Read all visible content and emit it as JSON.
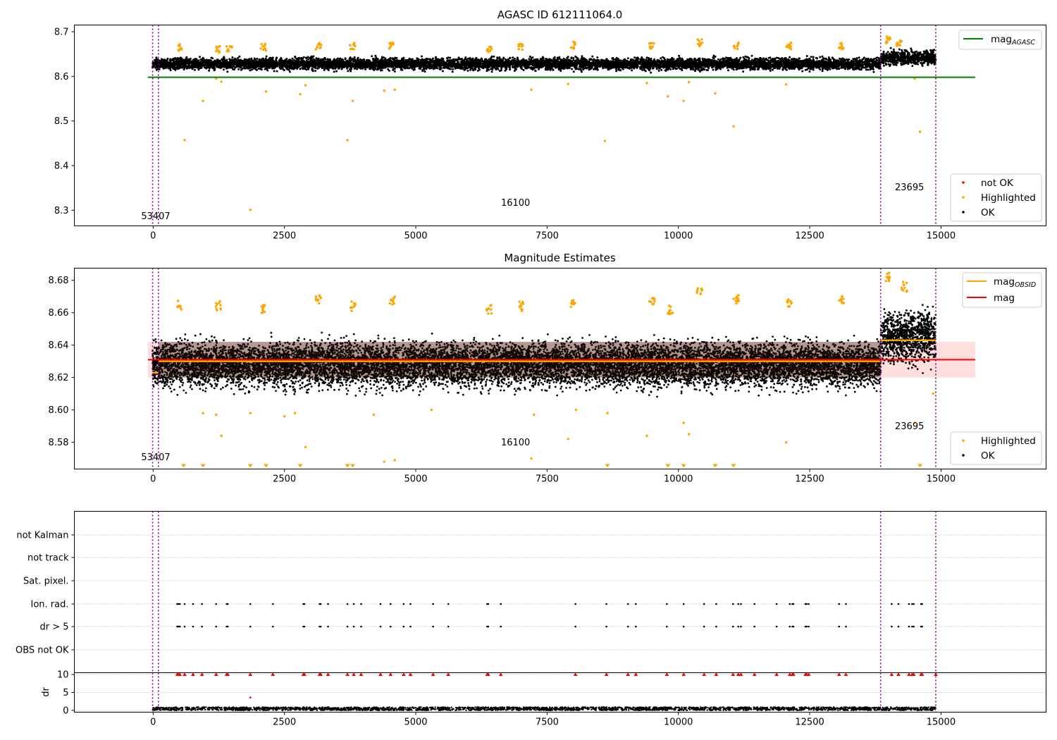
{
  "chart_data": [
    {
      "type": "scatter",
      "title": "AGASC ID 612111064.0",
      "xlim": [
        -1500,
        17000
      ],
      "ylim": [
        8.265,
        8.715
      ],
      "x_ticks": [
        0,
        2500,
        5000,
        7500,
        10000,
        12500,
        15000
      ],
      "y_ticks": [
        8.3,
        8.4,
        8.5,
        8.6,
        8.7
      ],
      "x_tick_labels": [
        "0",
        "2500",
        "5000",
        "7500",
        "10000",
        "12500",
        "15000"
      ],
      "y_tick_labels": [
        "8.3",
        "8.4",
        "8.5",
        "8.6",
        "8.7"
      ],
      "vlines": [
        -10,
        100,
        13850,
        14900
      ],
      "obsid_annotations": [
        {
          "x": 50,
          "y": 8.28,
          "label": "53407"
        },
        {
          "x": 6900,
          "y": 8.31,
          "label": "16100"
        },
        {
          "x": 14400,
          "y": 8.345,
          "label": "23695"
        }
      ],
      "hlines": [
        {
          "name": "mag_AGASC",
          "value": 8.598,
          "color": "#008000",
          "x_range": [
            -100,
            15650
          ]
        }
      ],
      "ok_band": {
        "x_segments": [
          [
            -10,
            13850,
            8.602,
            8.652,
            8.628
          ],
          [
            13850,
            14900,
            8.612,
            8.672,
            8.642
          ]
        ]
      },
      "highlighted_points": [
        [
          600,
          8.457
        ],
        [
          950,
          8.545
        ],
        [
          1200,
          8.595
        ],
        [
          1300,
          8.588
        ],
        [
          1850,
          8.301
        ],
        [
          2150,
          8.566
        ],
        [
          2800,
          8.56
        ],
        [
          2900,
          8.58
        ],
        [
          3700,
          8.457
        ],
        [
          3800,
          8.545
        ],
        [
          4400,
          8.568
        ],
        [
          4600,
          8.57
        ],
        [
          7200,
          8.57
        ],
        [
          7900,
          8.583
        ],
        [
          8600,
          8.455
        ],
        [
          9400,
          8.585
        ],
        [
          9800,
          8.555
        ],
        [
          10100,
          8.545
        ],
        [
          10200,
          8.587
        ],
        [
          10700,
          8.562
        ],
        [
          11050,
          8.488
        ],
        [
          12050,
          8.582
        ],
        [
          14600,
          8.476
        ],
        [
          14500,
          8.595
        ]
      ],
      "highlighted_clusters": [
        [
          500,
          8.665
        ],
        [
          1250,
          8.66
        ],
        [
          1450,
          8.66
        ],
        [
          2100,
          8.665
        ],
        [
          3150,
          8.668
        ],
        [
          3800,
          8.668
        ],
        [
          4550,
          8.668
        ],
        [
          6400,
          8.66
        ],
        [
          7000,
          8.665
        ],
        [
          8000,
          8.67
        ],
        [
          9500,
          8.667
        ],
        [
          10400,
          8.675
        ],
        [
          11100,
          8.668
        ],
        [
          12100,
          8.668
        ],
        [
          13100,
          8.668
        ],
        [
          14000,
          8.682
        ],
        [
          14200,
          8.675
        ]
      ],
      "legend": {
        "line": {
          "label_base": "mag",
          "label_sub": "AGASC",
          "color": "#008000",
          "placement": "top-right"
        },
        "markers": [
          {
            "label": "not OK",
            "color": "#ff0000"
          },
          {
            "label": "Highlighted",
            "color": "#ffa500"
          },
          {
            "label": "OK",
            "color": "#000000"
          }
        ],
        "markers_placement": "bottom-right"
      }
    },
    {
      "type": "scatter",
      "title": "Magnitude Estimates",
      "xlim": [
        -1500,
        17000
      ],
      "ylim": [
        8.5635,
        8.6875
      ],
      "x_ticks": [
        0,
        2500,
        5000,
        7500,
        10000,
        12500,
        15000
      ],
      "y_ticks": [
        8.58,
        8.6,
        8.62,
        8.64,
        8.66,
        8.68
      ],
      "x_tick_labels": [
        "0",
        "2500",
        "5000",
        "7500",
        "10000",
        "12500",
        "15000"
      ],
      "y_tick_labels": [
        "8.58",
        "8.60",
        "8.62",
        "8.64",
        "8.66",
        "8.68"
      ],
      "vlines": [
        -10,
        100,
        13850,
        14900
      ],
      "obsid_annotations": [
        {
          "x": 50,
          "y": 8.569,
          "label": "53407"
        },
        {
          "x": 6900,
          "y": 8.578,
          "label": "16100"
        },
        {
          "x": 14400,
          "y": 8.588,
          "label": "23695"
        }
      ],
      "mag_line": {
        "name": "mag",
        "value": 8.631,
        "color": "#ff0000",
        "x_range": [
          -100,
          15650
        ]
      },
      "mag_band": {
        "low": 8.62,
        "high": 8.642,
        "color": "#ffdede"
      },
      "mag_obsid_segments": [
        {
          "x_range": [
            -10,
            100
          ],
          "value": 8.623
        },
        {
          "x_range": [
            100,
            13850
          ],
          "value": 8.63
        },
        {
          "x_range": [
            13850,
            14900
          ],
          "value": 8.643
        }
      ],
      "mag_obsid_color": "#ffa500",
      "ok_band": {
        "x_segments": [
          [
            -10,
            13850,
            8.605,
            8.658,
            8.628
          ],
          [
            13850,
            14900,
            8.612,
            8.672,
            8.645
          ]
        ]
      },
      "highlighted_points": [
        [
          950,
          8.598
        ],
        [
          1200,
          8.597
        ],
        [
          1300,
          8.584
        ],
        [
          1850,
          8.598
        ],
        [
          2500,
          8.596
        ],
        [
          2700,
          8.598
        ],
        [
          2900,
          8.577
        ],
        [
          4200,
          8.597
        ],
        [
          4400,
          8.568
        ],
        [
          4600,
          8.569
        ],
        [
          5300,
          8.6
        ],
        [
          7200,
          8.57
        ],
        [
          7250,
          8.597
        ],
        [
          7900,
          8.582
        ],
        [
          8050,
          8.6
        ],
        [
          8650,
          8.598
        ],
        [
          9400,
          8.584
        ],
        [
          10100,
          8.592
        ],
        [
          10200,
          8.585
        ],
        [
          12050,
          8.58
        ],
        [
          14500,
          8.592
        ],
        [
          14850,
          8.61
        ]
      ],
      "highlighted_clusters": [
        [
          500,
          8.665
        ],
        [
          1250,
          8.664
        ],
        [
          2100,
          8.662
        ],
        [
          3150,
          8.668
        ],
        [
          3800,
          8.664
        ],
        [
          4550,
          8.668
        ],
        [
          6400,
          8.662
        ],
        [
          7000,
          8.664
        ],
        [
          8000,
          8.665
        ],
        [
          9500,
          8.667
        ],
        [
          9850,
          8.662
        ],
        [
          10400,
          8.672
        ],
        [
          11100,
          8.668
        ],
        [
          12100,
          8.666
        ],
        [
          13100,
          8.668
        ],
        [
          14000,
          8.682
        ],
        [
          14300,
          8.676
        ]
      ],
      "off_scale_markers_x": [
        580,
        950,
        1850,
        2150,
        2800,
        3700,
        3800,
        8650,
        9800,
        10100,
        10700,
        11050,
        14600
      ],
      "legend": {
        "lines": [
          {
            "label_base": "mag",
            "label_sub": "OBSID",
            "color": "#ffa500"
          },
          {
            "label_base": "mag",
            "label_sub": "",
            "color": "#ff0000"
          }
        ],
        "lines_placement": "top-right",
        "markers": [
          {
            "label": "Highlighted",
            "color": "#ffa500"
          },
          {
            "label": "OK",
            "color": "#000000"
          }
        ],
        "markers_placement": "bottom-right"
      }
    },
    {
      "type": "scatter",
      "title": "",
      "xlim": [
        -1500,
        17000
      ],
      "categories": [
        "not Kalman",
        "not track",
        "Sat. pixel.",
        "Ion. rad.",
        "dr > 5",
        "OBS not OK"
      ],
      "vlines": [
        -10,
        100,
        13850,
        14900
      ],
      "flag_x": [
        460,
        480,
        510,
        600,
        760,
        930,
        1200,
        1400,
        1420,
        1850,
        2280,
        2860,
        2880,
        3170,
        3190,
        3330,
        3700,
        3820,
        3960,
        4330,
        4520,
        4770,
        4900,
        5330,
        5620,
        6360,
        6380,
        6620,
        8040,
        8630,
        9040,
        9190,
        9780,
        10100,
        10490,
        10720,
        11040,
        11140,
        11190,
        11450,
        11870,
        12120,
        12170,
        12190,
        12420,
        12440,
        12480,
        13060,
        13190,
        14060,
        14190,
        14390,
        14450,
        14480,
        14620,
        14640
      ],
      "flag_rows": [
        "Ion. rad.",
        "dr > 5"
      ],
      "flag_color": "#000000",
      "not_ok_color": "#ff0000"
    },
    {
      "type": "scatter",
      "title": "",
      "ylabel": "dr",
      "xlim": [
        -1500,
        17000
      ],
      "ylim": [
        -0.5,
        10.5
      ],
      "x_ticks": [
        0,
        2500,
        5000,
        7500,
        10000,
        12500,
        15000
      ],
      "y_ticks": [
        0,
        5,
        10
      ],
      "x_tick_labels": [
        "0",
        "2500",
        "5000",
        "7500",
        "10000",
        "12500",
        "15000"
      ],
      "y_tick_labels": [
        "0",
        "5",
        "10"
      ],
      "vlines": [
        -10,
        100,
        13850,
        14900
      ],
      "clipped_x": [
        460,
        480,
        510,
        600,
        760,
        930,
        1200,
        1400,
        1420,
        1850,
        2280,
        2860,
        2880,
        3170,
        3190,
        3330,
        3700,
        3820,
        3960,
        4330,
        4520,
        4770,
        4900,
        5330,
        5620,
        6360,
        6380,
        6620,
        8040,
        8630,
        9040,
        9190,
        9780,
        10100,
        10490,
        10720,
        11040,
        11140,
        11190,
        11450,
        11870,
        12120,
        12170,
        12190,
        12420,
        12440,
        12480,
        13060,
        13190,
        14060,
        14190,
        14390,
        14450,
        14480,
        14620,
        14640,
        14900
      ],
      "clipped_value": 10,
      "outlier_points": [
        [
          1850,
          3.6
        ]
      ],
      "ok_dr_range": [
        0,
        0.9
      ]
    }
  ]
}
